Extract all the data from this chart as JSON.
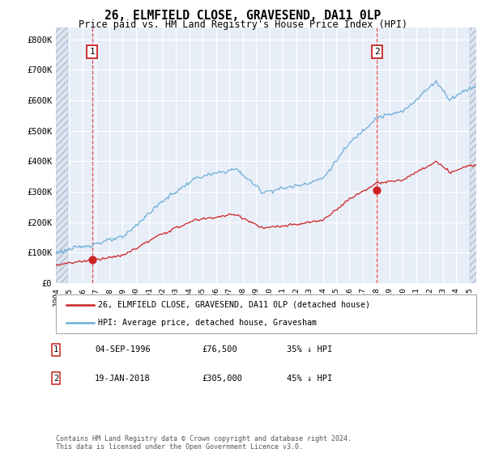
{
  "title": "26, ELMFIELD CLOSE, GRAVESEND, DA11 0LP",
  "subtitle": "Price paid vs. HM Land Registry's House Price Index (HPI)",
  "ylim": [
    0,
    840000
  ],
  "yticks": [
    0,
    100000,
    200000,
    300000,
    400000,
    500000,
    600000,
    700000,
    800000
  ],
  "ytick_labels": [
    "£0",
    "£100K",
    "£200K",
    "£300K",
    "£400K",
    "£500K",
    "£600K",
    "£700K",
    "£800K"
  ],
  "legend_line1": "26, ELMFIELD CLOSE, GRAVESEND, DA11 0LP (detached house)",
  "legend_line2": "HPI: Average price, detached house, Gravesham",
  "sale1_date": "04-SEP-1996",
  "sale1_price": "£76,500",
  "sale1_pct": "35% ↓ HPI",
  "sale2_date": "19-JAN-2018",
  "sale2_price": "£305,000",
  "sale2_pct": "45% ↓ HPI",
  "footer": "Contains HM Land Registry data © Crown copyright and database right 2024.\nThis data is licensed under the Open Government Licence v3.0.",
  "hpi_color": "#6baed6",
  "price_color": "#cc2222",
  "vline_color": "#dd3333",
  "background_color": "#e8eef8",
  "hatch_color": "#c8d4e8",
  "grid_color": "#ffffff",
  "xlim_start": 1994.0,
  "xlim_end": 2025.5,
  "sale1_year": 1996.71,
  "sale2_year": 2018.05,
  "sale1_price_val": 76500,
  "sale2_price_val": 305000
}
